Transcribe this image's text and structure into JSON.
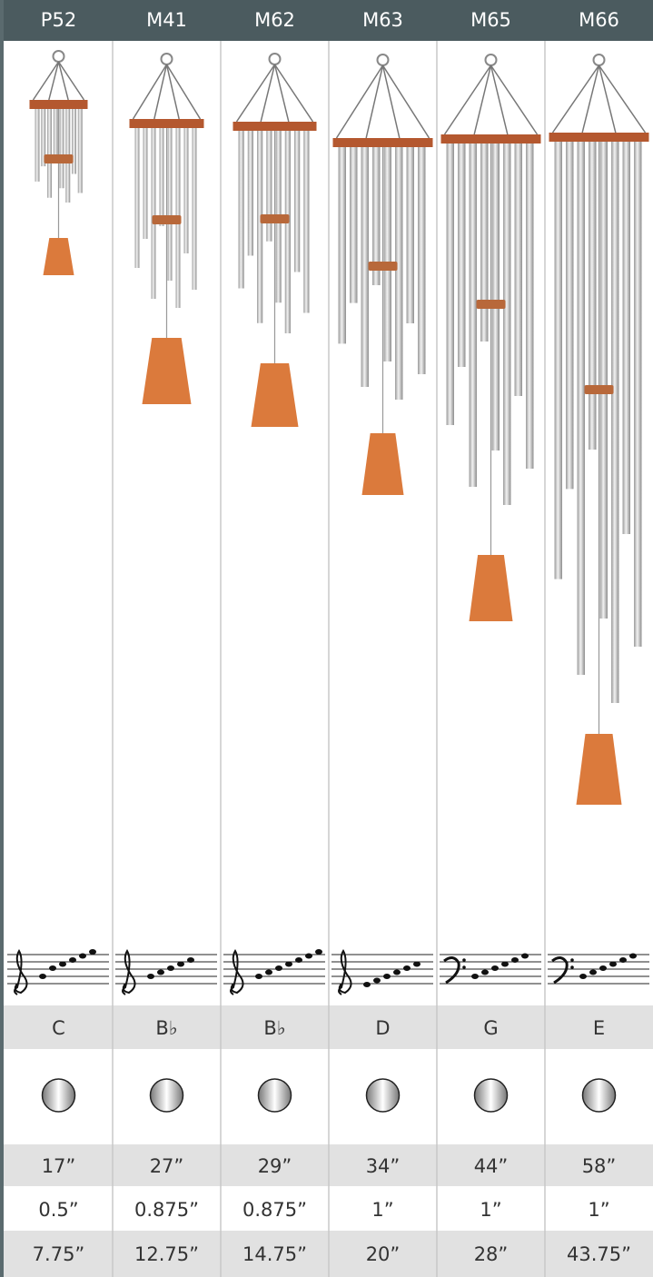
{
  "table": {
    "columns": [
      {
        "model": "P52",
        "key": "C",
        "length": "17”",
        "diameter": "0.5”",
        "last": "7.75”"
      },
      {
        "model": "M41",
        "key": "B♭",
        "length": "27”",
        "diameter": "0.875”",
        "last": "12.75”"
      },
      {
        "model": "M62",
        "key": "B♭",
        "length": "29”",
        "diameter": "0.875”",
        "last": "14.75”"
      },
      {
        "model": "M63",
        "key": "D",
        "length": "34”",
        "diameter": "1”",
        "last": "20”"
      },
      {
        "model": "M65",
        "key": "G",
        "length": "44”",
        "diameter": "1”",
        "last": "28”"
      },
      {
        "model": "M66",
        "key": "E",
        "length": "58”",
        "diameter": "1”",
        "last": "43.75”"
      }
    ]
  }
}
